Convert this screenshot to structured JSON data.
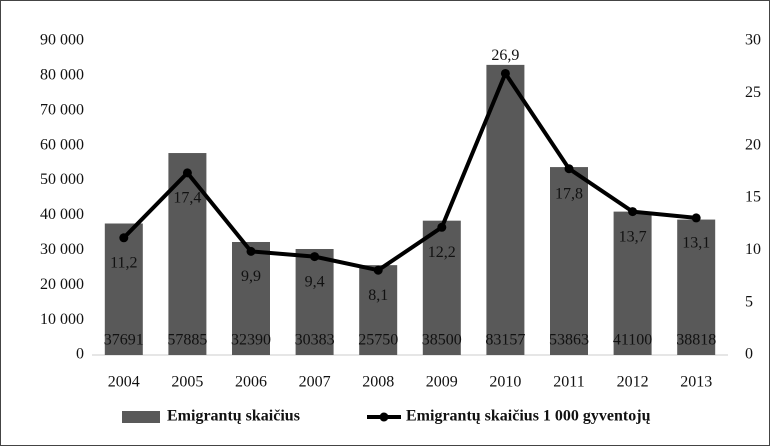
{
  "chart_data": {
    "type": "bar",
    "categories": [
      "2004",
      "2005",
      "2006",
      "2007",
      "2008",
      "2009",
      "2010",
      "2011",
      "2012",
      "2013"
    ],
    "series": [
      {
        "name": "Emigrantų skaičius",
        "type": "bar",
        "color": "#595959",
        "values": [
          37691,
          57885,
          32390,
          30383,
          25750,
          38500,
          83157,
          53863,
          41100,
          38818
        ]
      },
      {
        "name": "Emigrantų skaičius 1 000 gyventojų",
        "type": "line",
        "axis": "y2",
        "color": "#000000",
        "values": [
          11.2,
          17.4,
          9.9,
          9.4,
          8.1,
          12.2,
          26.9,
          17.8,
          13.7,
          13.1
        ],
        "value_labels": [
          "11,2",
          "17,4",
          "9,9",
          "9,4",
          "8,1",
          "12,2",
          "26,9",
          "17,8",
          "13,7",
          "13,1"
        ]
      }
    ],
    "ylim": [
      0,
      90000
    ],
    "yticks": [
      0,
      {
        "value": 10000,
        "label": "10 000"
      },
      {
        "value": 20000,
        "label": "20 000"
      },
      {
        "value": 30000,
        "label": "30 000"
      },
      {
        "value": 40000,
        "label": "40 000"
      },
      {
        "value": 50000,
        "label": "50 000"
      },
      {
        "value": 60000,
        "label": "60 000"
      },
      {
        "value": 70000,
        "label": "70 000"
      },
      {
        "value": 80000,
        "label": "80 000"
      },
      {
        "value": 90000,
        "label": "90 000"
      }
    ],
    "y2lim": [
      0,
      30
    ],
    "y2ticks": [
      0,
      5,
      10,
      15,
      20,
      25,
      30
    ],
    "legend": "bottom"
  }
}
